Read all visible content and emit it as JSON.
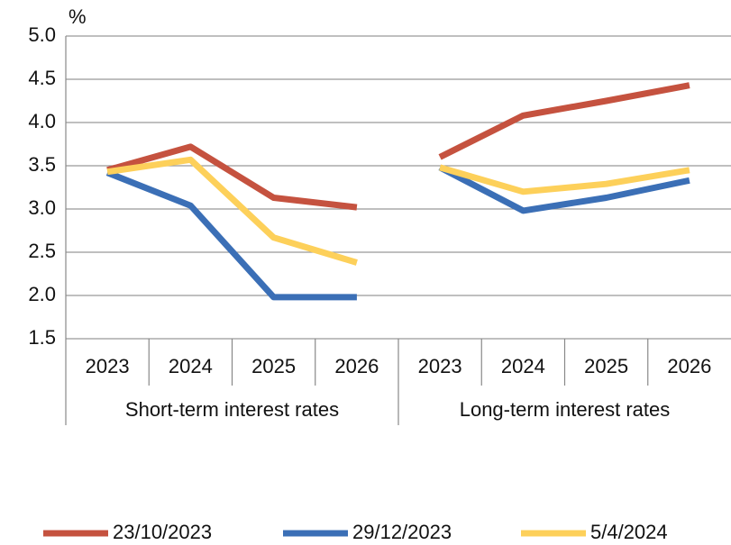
{
  "chart_data": {
    "type": "line",
    "y_label": "%",
    "groups": [
      {
        "label": "Short-term interest rates",
        "categories": [
          "2023",
          "2024",
          "2025",
          "2026"
        ]
      },
      {
        "label": "Long-term interest rates",
        "categories": [
          "2023",
          "2024",
          "2025",
          "2026"
        ]
      }
    ],
    "series": [
      {
        "name": "23/10/2023",
        "color": "#c5523f",
        "values": [
          [
            3.45,
            3.72,
            3.13,
            3.02
          ],
          [
            3.6,
            4.08,
            4.25,
            4.43
          ]
        ]
      },
      {
        "name": "29/12/2023",
        "color": "#3b6fb6",
        "values": [
          [
            3.42,
            3.04,
            1.98,
            1.98
          ],
          [
            3.48,
            2.98,
            3.13,
            3.33
          ]
        ]
      },
      {
        "name": "5/4/2024",
        "color": "#fdd05a",
        "values": [
          [
            3.43,
            3.57,
            2.67,
            2.38
          ],
          [
            3.48,
            3.2,
            3.29,
            3.45
          ]
        ]
      }
    ],
    "ylim": [
      1.5,
      5
    ],
    "yticks": [
      1.5,
      {
        "value": 2,
        "label": "2.0"
      },
      2.5,
      {
        "value": 3,
        "label": "3.0"
      },
      3.5,
      {
        "value": 4,
        "label": "4.0"
      },
      4.5,
      {
        "value": 5,
        "label": "5.0"
      }
    ],
    "grid": true,
    "legend": "bottom"
  }
}
